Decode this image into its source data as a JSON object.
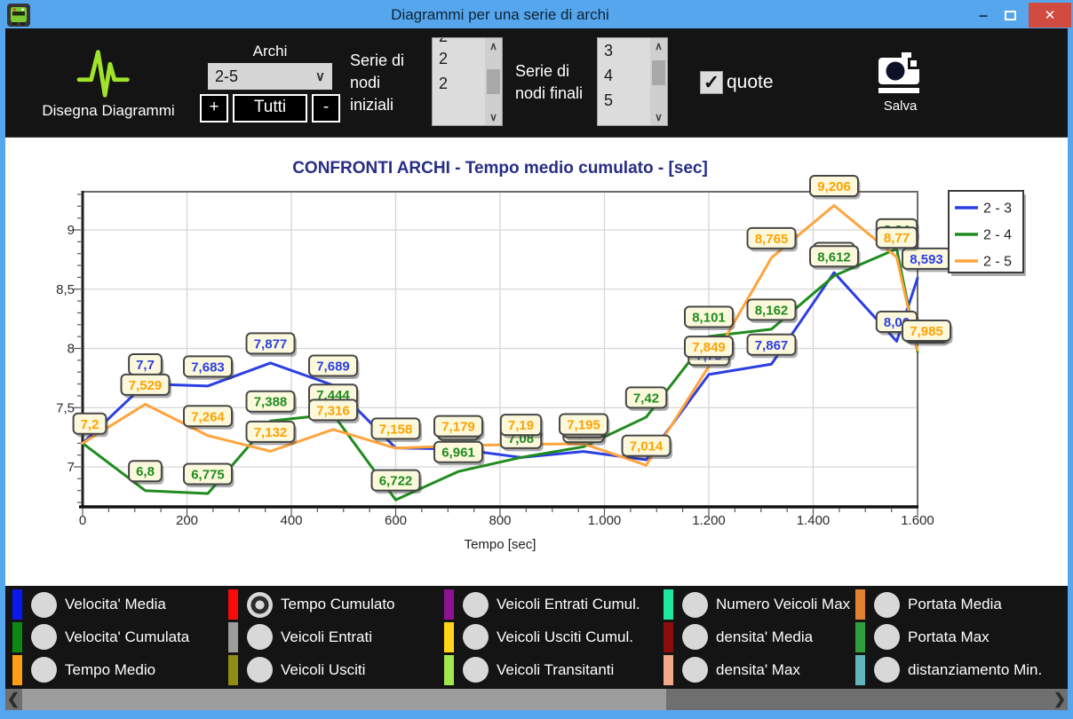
{
  "window": {
    "title": "Diagrammi per una serie di archi",
    "icons": {
      "app": "bus-icon",
      "minimize": "–",
      "close": "✕"
    }
  },
  "toolbar": {
    "draw_diagrams_label": "Disegna Diagrammi",
    "archi": {
      "label": "Archi",
      "selected_value": "2-5",
      "plus_button": "+",
      "tutti_button": "Tutti",
      "minus_button": "-"
    },
    "serie_nodi_iniziali": {
      "label": "Serie di nodi iniziali",
      "partial_top_item": "2",
      "items": [
        "2",
        "2"
      ]
    },
    "serie_nodi_finali": {
      "label": "Serie di nodi finali",
      "items": [
        "3",
        "4",
        "5"
      ]
    },
    "quote": {
      "label": "quote",
      "checked": true
    },
    "salva_label": "Salva"
  },
  "chart_data": {
    "type": "line",
    "title": "CONFRONTI ARCHI - Tempo medio cumulato - [sec]",
    "title_color": "#272d85",
    "xlabel": "Tempo [sec]",
    "ylabel": "",
    "xlim": [
      0,
      1600
    ],
    "ylim": [
      6.66,
      9.32
    ],
    "grid": true,
    "legend_position": "top-right",
    "x_tick_values": [
      0,
      200,
      400,
      600,
      800,
      1000,
      1200,
      1400,
      1600
    ],
    "x_tick_labels": [
      "0",
      "200",
      "400",
      "600",
      "800",
      "1.000",
      "1.200",
      "1.400",
      "1.600"
    ],
    "y_tick_values": [
      7,
      7.5,
      8,
      8.5,
      9
    ],
    "y_tick_labels": [
      "7",
      "7,5",
      "8",
      "8,5",
      "9"
    ],
    "label_box_fill": "#fbf8dc",
    "label_box_border": "#474747",
    "series": [
      {
        "name": "2 - 3",
        "color": "#2c3fe2",
        "points": [
          {
            "t": 0,
            "v": 7.2
          },
          {
            "t": 120,
            "v": 7.7,
            "label": "7,7"
          },
          {
            "t": 240,
            "v": 7.683,
            "label": "7,683"
          },
          {
            "t": 360,
            "v": 7.877,
            "label": "7,877"
          },
          {
            "t": 480,
            "v": 7.689,
            "label": "7,689"
          },
          {
            "t": 600,
            "v": 7.16
          },
          {
            "t": 720,
            "v": 7.15,
            "label": "7,15",
            "estimated": true
          },
          {
            "t": 840,
            "v": 7.08
          },
          {
            "t": 960,
            "v": 7.13,
            "label": "7,13",
            "estimated": true
          },
          {
            "t": 1080,
            "v": 7.06
          },
          {
            "t": 1200,
            "v": 7.78,
            "label": "7,78",
            "estimated": true
          },
          {
            "t": 1320,
            "v": 7.867,
            "label": "7,867"
          },
          {
            "t": 1440,
            "v": 8.64,
            "label": "8,64",
            "estimated": true
          },
          {
            "t": 1560,
            "v": 8.06,
            "label": "8,06",
            "estimated": true
          },
          {
            "t": 1600,
            "v": 8.593,
            "label": "8,593",
            "dx": 10
          }
        ]
      },
      {
        "name": "2 - 4",
        "color": "#1f8c1f",
        "points": [
          {
            "t": 0,
            "v": 7.2
          },
          {
            "t": 120,
            "v": 6.8,
            "label": "6,8"
          },
          {
            "t": 240,
            "v": 6.775,
            "label": "6,775"
          },
          {
            "t": 360,
            "v": 7.388,
            "label": "7,388"
          },
          {
            "t": 480,
            "v": 7.444,
            "label": "7,444"
          },
          {
            "t": 600,
            "v": 6.722,
            "label": "6,722"
          },
          {
            "t": 720,
            "v": 6.961,
            "label": "6,961"
          },
          {
            "t": 840,
            "v": 7.08,
            "label": "7,08"
          },
          {
            "t": 960,
            "v": 7.17,
            "label": "7,17",
            "estimated": true
          },
          {
            "t": 1080,
            "v": 7.42,
            "label": "7,42"
          },
          {
            "t": 1200,
            "v": 8.101,
            "label": "8,101"
          },
          {
            "t": 1320,
            "v": 8.162,
            "label": "8,162"
          },
          {
            "t": 1440,
            "v": 8.612,
            "label": "8,612"
          },
          {
            "t": 1560,
            "v": 8.84,
            "label": "8,84",
            "estimated": true
          },
          {
            "t": 1600,
            "v": 7.97,
            "label": "7,97",
            "estimated": true,
            "dx": 10
          }
        ]
      },
      {
        "name": "2 - 5",
        "color": "#ffa43c",
        "text_color": "#ffa200",
        "points": [
          {
            "t": 0,
            "v": 7.2,
            "label": "7,2",
            "dx": 8
          },
          {
            "t": 120,
            "v": 7.529,
            "label": "7,529"
          },
          {
            "t": 240,
            "v": 7.264,
            "label": "7,264"
          },
          {
            "t": 360,
            "v": 7.132,
            "label": "7,132"
          },
          {
            "t": 480,
            "v": 7.316,
            "label": "7,316"
          },
          {
            "t": 600,
            "v": 7.158,
            "label": "7,158"
          },
          {
            "t": 720,
            "v": 7.179,
            "label": "7,179"
          },
          {
            "t": 840,
            "v": 7.19,
            "label": "7,19"
          },
          {
            "t": 960,
            "v": 7.195,
            "label": "7,195"
          },
          {
            "t": 1080,
            "v": 7.014,
            "label": "7,014"
          },
          {
            "t": 1200,
            "v": 7.849,
            "label": "7,849"
          },
          {
            "t": 1320,
            "v": 8.765,
            "label": "8,765"
          },
          {
            "t": 1440,
            "v": 9.206,
            "label": "9,206"
          },
          {
            "t": 1560,
            "v": 8.77,
            "label": "8,77"
          },
          {
            "t": 1600,
            "v": 7.985,
            "label": "7,985",
            "dx": 10
          }
        ]
      }
    ]
  },
  "metric_panel": {
    "items": [
      {
        "label": "Velocita' Media",
        "color": "#0a18f0",
        "selected": false
      },
      {
        "label": "Velocita' Cumulata",
        "color": "#0c8a12",
        "selected": false
      },
      {
        "label": "Tempo Medio",
        "color": "#ff9d14",
        "selected": false
      },
      {
        "label": "Tempo Cumulato",
        "color": "#fb0a0a",
        "selected": true
      },
      {
        "label": "Veicoli Entrati",
        "color": "#9c9c9c",
        "selected": false
      },
      {
        "label": "Veicoli Usciti",
        "color": "#8f8d13",
        "selected": false
      },
      {
        "label": "Veicoli Entrati Cumul.",
        "color": "#8c1292",
        "selected": false
      },
      {
        "label": "Veicoli Usciti Cumul.",
        "color": "#ffd517",
        "selected": false
      },
      {
        "label": "Veicoli Transitanti",
        "color": "#a2e84c",
        "selected": false
      },
      {
        "label": "Numero Veicoli Max",
        "color": "#1fe8a0",
        "selected": false
      },
      {
        "label": "densita' Media",
        "color": "#8c0d0d",
        "selected": false
      },
      {
        "label": "densita' Max",
        "color": "#f2a889",
        "selected": false
      },
      {
        "label": "Portata Media",
        "color": "#e0822e",
        "selected": false
      },
      {
        "label": "Portata Max",
        "color": "#2e9e3e",
        "selected": false
      },
      {
        "label": "distanziamento Min.",
        "color": "#62b4bc",
        "selected": false
      }
    ]
  }
}
